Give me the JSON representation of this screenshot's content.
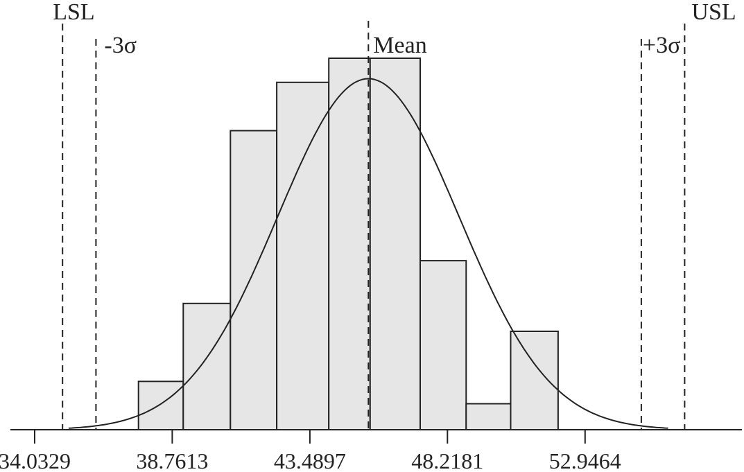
{
  "chart_data": {
    "type": "bar",
    "title": "",
    "xlabel": "",
    "ylabel": "",
    "xlim": [
      34.0329,
      56.55
    ],
    "ylim": [
      0,
      1.0
    ],
    "grid": false,
    "x_ticks": [
      34.0329,
      38.7613,
      43.4897,
      48.2181,
      52.9464
    ],
    "bins": [
      {
        "start": 37.6,
        "end": 39.14,
        "value": 0.13
      },
      {
        "start": 39.14,
        "end": 40.76,
        "value": 0.34
      },
      {
        "start": 40.76,
        "end": 42.35,
        "value": 0.805
      },
      {
        "start": 42.35,
        "end": 44.14,
        "value": 0.935
      },
      {
        "start": 44.14,
        "end": 45.56,
        "value": 1.0
      },
      {
        "start": 45.56,
        "end": 47.28,
        "value": 1.0
      },
      {
        "start": 47.28,
        "end": 48.86,
        "value": 0.455
      },
      {
        "start": 48.86,
        "end": 50.39,
        "value": 0.07
      },
      {
        "start": 50.39,
        "end": 52.02,
        "value": 0.265
      }
    ],
    "reference_lines": [
      {
        "label": "LSL",
        "x": 34.99
      },
      {
        "label": "-3σ",
        "x": 36.14
      },
      {
        "label": "Mean",
        "x": 45.5
      },
      {
        "label": "+3σ",
        "x": 54.88
      },
      {
        "label": "USL",
        "x": 56.37
      }
    ],
    "curve": {
      "type": "normal",
      "mean": 45.5,
      "sigma": 3.12,
      "peak": 0.945,
      "x_start": 35.2,
      "x_end": 55.8
    }
  }
}
